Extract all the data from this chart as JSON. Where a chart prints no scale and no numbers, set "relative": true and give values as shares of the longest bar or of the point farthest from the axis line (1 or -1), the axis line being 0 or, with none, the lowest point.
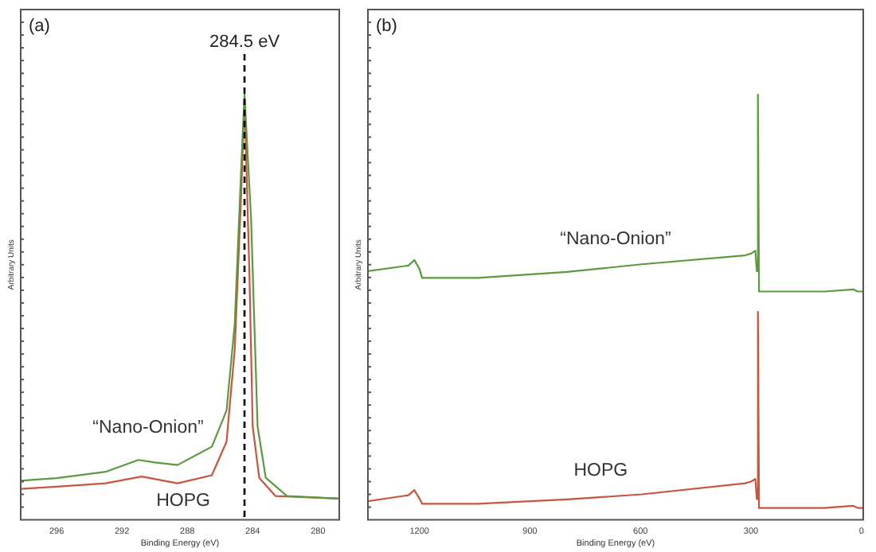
{
  "chart_data": [
    {
      "type": "line",
      "annotations": [
        "(a)"
      ],
      "xlabel": "Binding Energy (eV)",
      "ylabel": "Arbitrary Units",
      "xlim": [
        298.2,
        278.7
      ],
      "xticks": [
        296,
        292,
        288,
        284,
        280
      ],
      "relative": true,
      "tick_labels": "x",
      "ref_lines": [
        {
          "axis": "x",
          "value": 284.5,
          "label": "284.5 eV",
          "color": "#000000",
          "line_style": "dashed"
        }
      ],
      "series": [
        {
          "name": "“Nano-Onion”",
          "color": "#5b9a3e",
          "x": [
            298.2,
            296.0,
            293.0,
            291.0,
            290.0,
            288.6,
            286.5,
            285.6,
            285.1,
            284.7,
            284.5,
            284.1,
            283.7,
            283.2,
            281.9,
            278.7
          ],
          "values": [
            0.092,
            0.098,
            0.113,
            0.141,
            0.135,
            0.129,
            0.172,
            0.257,
            0.46,
            0.83,
            1.0,
            0.71,
            0.22,
            0.099,
            0.056,
            0.05
          ]
        },
        {
          "name": "HOPG",
          "color": "#c8553d",
          "x": [
            298.2,
            296.0,
            293.0,
            290.8,
            288.6,
            286.5,
            285.6,
            285.1,
            284.7,
            284.5,
            284.2,
            284.0,
            283.6,
            282.6,
            278.7
          ],
          "values": [
            0.073,
            0.078,
            0.086,
            0.102,
            0.086,
            0.105,
            0.184,
            0.4,
            0.77,
            0.99,
            0.58,
            0.22,
            0.099,
            0.056,
            0.05
          ]
        }
      ]
    },
    {
      "type": "line",
      "annotations": [
        "(b)"
      ],
      "xlabel": "Binding Energy (eV)",
      "ylabel": "Arbitrary Units",
      "xlim": [
        1340,
        -5
      ],
      "xticks": [
        1200,
        900,
        600,
        300,
        0
      ],
      "relative": true,
      "tick_labels": "x",
      "series": [
        {
          "name": "“Nano-Onion”",
          "color": "#5b9a3e",
          "x": [
            1340,
            1230,
            1214,
            1200,
            1193,
            1042,
            800,
            596,
            316,
            300,
            288,
            284,
            281,
            278,
            100,
            22,
            10,
            -5
          ],
          "values": [
            0.585,
            0.598,
            0.611,
            0.59,
            0.569,
            0.569,
            0.583,
            0.601,
            0.622,
            0.626,
            0.633,
            0.585,
            1.0,
            0.537,
            0.537,
            0.542,
            0.537,
            0.537
          ]
        },
        {
          "name": "HOPG",
          "color": "#c8553d",
          "x": [
            1340,
            1230,
            1214,
            1200,
            1193,
            1042,
            800,
            596,
            316,
            300,
            288,
            284,
            281,
            278,
            100,
            22,
            10,
            -5
          ],
          "values": [
            0.044,
            0.058,
            0.07,
            0.05,
            0.038,
            0.038,
            0.048,
            0.06,
            0.086,
            0.09,
            0.096,
            0.049,
            0.489,
            0.028,
            0.028,
            0.033,
            0.028,
            0.028
          ]
        }
      ]
    }
  ]
}
